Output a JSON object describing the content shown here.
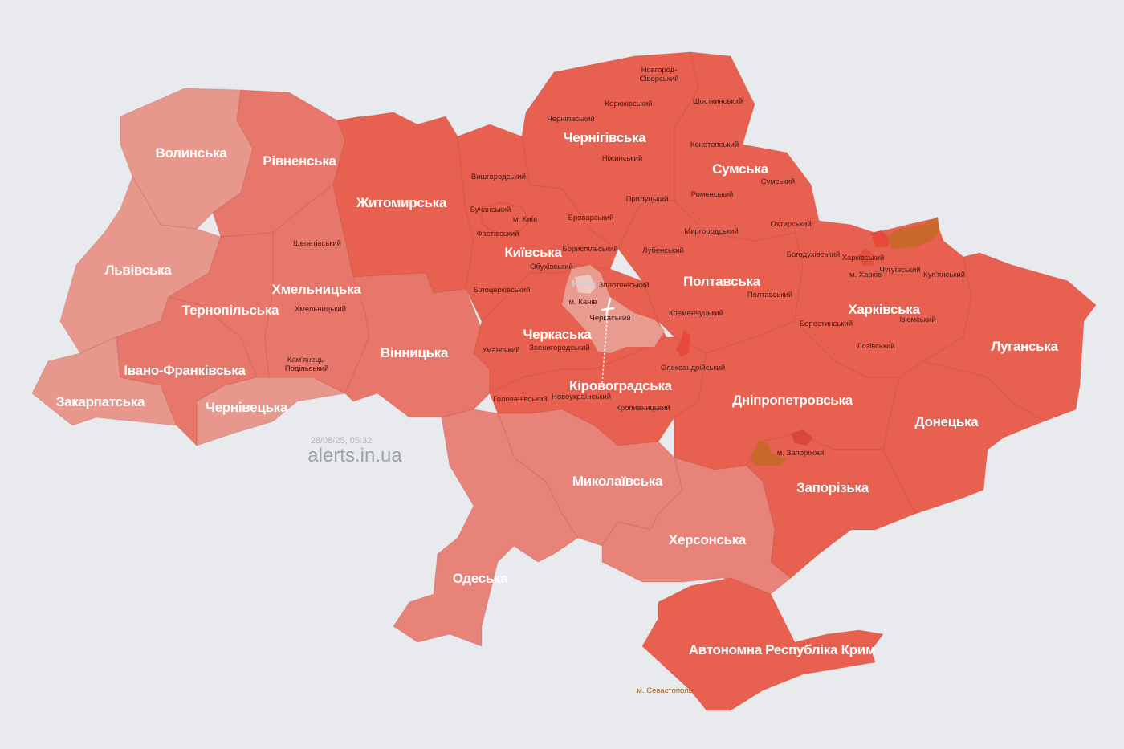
{
  "colors": {
    "background": "#e8eaed",
    "alert_strong": "#e8604f",
    "alert_medium": "#e8776b",
    "alert_soft": "#e8837a",
    "alert_light": "#e8978d",
    "district_alert": "#e84a3a",
    "orange_zone": "#c8682a",
    "no_alert_local": "#e89b8f"
  },
  "watermark": {
    "timestamp": "28/08/25, 05:32",
    "site": "alerts.in.ua"
  },
  "oblasts": {
    "volyn": {
      "name": "Волинська",
      "level": "light"
    },
    "rivne": {
      "name": "Рівненська",
      "level": "medium"
    },
    "lviv": {
      "name": "Львівська",
      "level": "light"
    },
    "zakarpattia": {
      "name": "Закарпатська",
      "level": "light"
    },
    "ivano": {
      "name": "Івано-Франківська",
      "level": "medium"
    },
    "chernivtsi": {
      "name": "Чернівецька",
      "level": "light"
    },
    "ternopil": {
      "name": "Тернопільська",
      "level": "medium"
    },
    "khmelnytskyi": {
      "name": "Хмельницька",
      "level": "medium"
    },
    "zhytomyr": {
      "name": "Житомирська",
      "level": "strong"
    },
    "vinnytsia": {
      "name": "Вінницька",
      "level": "medium"
    },
    "kyiv": {
      "name": "Київська",
      "level": "strong"
    },
    "chernihiv": {
      "name": "Чернігівська",
      "level": "strong"
    },
    "sumy": {
      "name": "Сумська",
      "level": "strong"
    },
    "poltava": {
      "name": "Полтавська",
      "level": "strong"
    },
    "cherkasy": {
      "name": "Черкаська",
      "level": "strong"
    },
    "kirovohrad": {
      "name": "Кіровоградська",
      "level": "strong"
    },
    "kharkiv": {
      "name": "Харківська",
      "level": "strong"
    },
    "luhansk": {
      "name": "Луганська",
      "level": "strong"
    },
    "donetsk": {
      "name": "Донецька",
      "level": "strong"
    },
    "dnipro": {
      "name": "Дніпропетровська",
      "level": "strong"
    },
    "zaporizhzhia": {
      "name": "Запорізька",
      "level": "strong"
    },
    "mykolaiv": {
      "name": "Миколаївська",
      "level": "soft"
    },
    "odesa": {
      "name": "Одеська",
      "level": "soft"
    },
    "kherson": {
      "name": "Херсонська",
      "level": "soft"
    },
    "crimea": {
      "name": "Автономна Республіка Крим",
      "level": "strong"
    }
  },
  "districts": {
    "novhorod": "Новгород-\nСіверський",
    "koriukivskyi": "Корюківський",
    "shostkynskyi": "Шосткинський",
    "chernihivskyi": "Чернігівський",
    "konotopskyi": "Конотопський",
    "nizhynskyi": "Ніжинський",
    "sumskyi": "Сумський",
    "vyshhorodskyi": "Вишгородський",
    "romenskyi": "Роменський",
    "prylutskyi": "Прилуцький",
    "buchanskyi": "Бучанський",
    "kyiv_city": "м. Київ",
    "brovarskyi": "Броварський",
    "okhtyrskyi": "Охтирський",
    "myrhorodskyi": "Миргородський",
    "fastivskyi": "Фастівський",
    "boryspilskyi": "Бориспільський",
    "lubenskyi": "Лубенський",
    "bohodukhivskyi": "Богодухівський",
    "kharkivskyi": "Харківський",
    "shepetivskyi": "Шепетівський",
    "obukhivskyi": "Обухівський",
    "chuhuivskyi": "Чугуївський",
    "kharkiv_city": "м. Харків",
    "kupianskyi": "Куп'янський",
    "zolotoniskyi": "Золотоніський",
    "bilotserkivskyi": "Білоцерківський",
    "poltavskyi": "Полтавський",
    "kaniv_city": "м. Канів",
    "khmelnytskyi": "Хмельницький",
    "kremenchutskyi": "Кременчуцький",
    "cherkaskyi": "Черкаський",
    "izyumskyi": "Ізюмський",
    "berestynskyi": "Берестинський",
    "zvenyhorodskyi": "Звенигородський",
    "umanskyi": "Уманський",
    "lozivskyi": "Лозівський",
    "kamianets": "Кам'янець-\nПодільський",
    "oleksandriiskyi": "Олександрійський",
    "holovanivskyi": "Голованівський",
    "novoukrainskyi": "Новоукраїнський",
    "kropyvnytskyi": "Кропивницький",
    "zaporizhzhia_city": "м. Запоріжжя",
    "sevastopol_city": "м. Севастополь"
  },
  "icons": {
    "missile": "missile-trajectory-icon",
    "aircraft": "aircraft-icon"
  }
}
